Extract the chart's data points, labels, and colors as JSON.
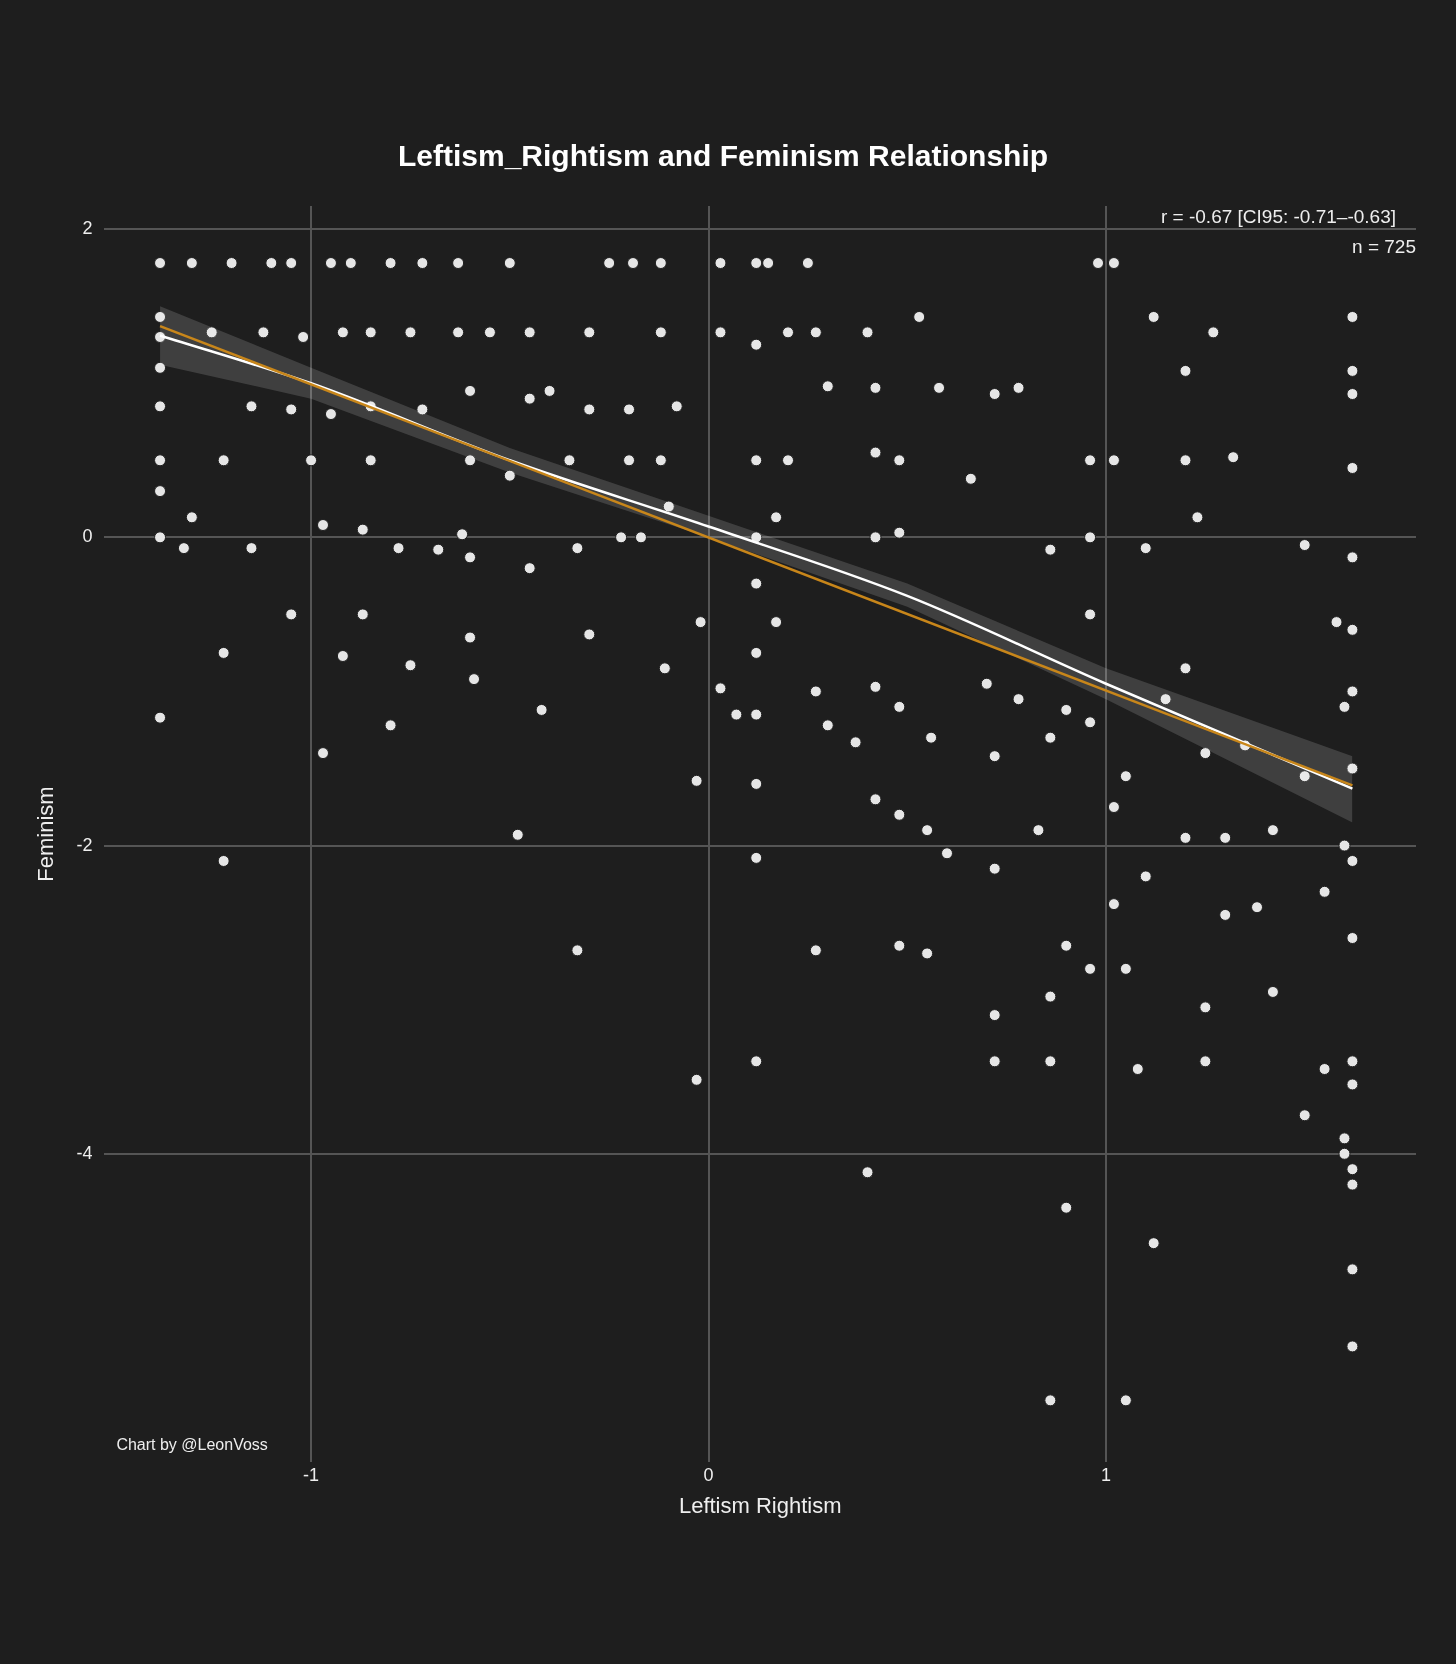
{
  "chart_data": {
    "type": "scatter",
    "title": "Leftism_Rightism and Feminism Relationship",
    "xlabel": "Leftism Rightism",
    "ylabel": "Feminism",
    "annotations": [
      "r = -0.67 [CI95: -0.71–-0.63]",
      "n = 725",
      "Chart by @LeonVoss"
    ],
    "xlim": [
      -1.52,
      1.78
    ],
    "ylim": [
      -6,
      2.15
    ],
    "xticks": [
      -1,
      0,
      1
    ],
    "yticks": [
      2,
      0,
      -2,
      -4
    ],
    "grid": true,
    "series": [
      {
        "marker": "circle",
        "color": "#e6e6e6",
        "x": [
          -1.38,
          -1.38,
          -1.38,
          -1.38,
          -1.38,
          -1.38,
          -1.38,
          -1.38,
          -1.38,
          -1.3,
          -1.2,
          -1.1,
          -1.05,
          -0.95,
          -0.9,
          -0.8,
          -0.72,
          -0.63,
          -0.5,
          -0.25,
          -0.19,
          -0.12,
          0.03,
          0.12,
          0.15,
          0.25,
          0.98,
          1.02,
          -1.25,
          -1.12,
          -1.02,
          -0.92,
          -0.85,
          -0.75,
          -0.63,
          -0.55,
          -0.45,
          -0.3,
          -0.12,
          0.03,
          0.12,
          0.2,
          0.27,
          0.4,
          1.12,
          1.27,
          1.62,
          0.53,
          -1.15,
          -1.05,
          -0.95,
          -0.85,
          -0.72,
          -0.6,
          -0.45,
          -0.4,
          -0.3,
          -0.2,
          -0.08,
          0.3,
          0.42,
          0.58,
          0.72,
          0.78,
          1.2,
          1.62,
          1.62,
          -1.22,
          -1.0,
          -0.85,
          -0.6,
          -0.5,
          -0.35,
          -0.2,
          -0.12,
          0.12,
          0.2,
          0.42,
          0.48,
          0.66,
          0.96,
          1.02,
          1.2,
          1.32,
          1.62,
          -1.3,
          -1.32,
          -1.15,
          -0.97,
          -0.87,
          -0.78,
          -0.68,
          -0.62,
          -0.6,
          -0.33,
          -0.22,
          -0.17,
          -0.1,
          0.12,
          0.12,
          0.17,
          0.42,
          0.48,
          0.86,
          0.96,
          1.1,
          1.23,
          1.5,
          1.62,
          -1.22,
          -1.05,
          -0.92,
          -0.87,
          -0.75,
          -0.6,
          -0.59,
          -0.45,
          -0.42,
          -0.3,
          -0.11,
          -0.02,
          0.03,
          0.07,
          0.12,
          0.12,
          0.12,
          0.12,
          0.17,
          0.27,
          0.3,
          0.37,
          0.42,
          0.42,
          0.48,
          0.48,
          0.55,
          0.6,
          0.56,
          0.7,
          0.72,
          0.72,
          0.78,
          0.83,
          0.86,
          0.9,
          0.96,
          0.96,
          1.02,
          1.05,
          1.1,
          1.15,
          1.2,
          1.2,
          1.25,
          1.3,
          1.35,
          1.42,
          1.5,
          1.55,
          1.58,
          1.6,
          1.6,
          1.62,
          1.62,
          1.62,
          1.62,
          1.62,
          -1.22,
          -0.97,
          -0.8,
          -0.48,
          -0.33,
          -0.03,
          -0.03,
          0.12,
          0.27,
          0.48,
          0.55,
          0.72,
          0.72,
          0.86,
          0.86,
          0.9,
          0.96,
          1.02,
          1.05,
          1.08,
          1.25,
          1.25,
          1.3,
          1.38,
          1.42,
          1.5,
          1.55,
          1.6,
          1.6,
          1.62,
          1.62,
          1.62,
          1.62,
          1.62,
          1.62,
          0.4,
          0.9,
          1.12,
          0.86,
          1.05
        ],
        "values": [
          1.78,
          1.43,
          1.3,
          1.1,
          0.85,
          0.5,
          0.3,
          0,
          -1.17,
          1.78,
          1.78,
          1.78,
          1.78,
          1.78,
          1.78,
          1.78,
          1.78,
          1.78,
          1.78,
          1.78,
          1.78,
          1.78,
          1.78,
          1.78,
          1.78,
          1.78,
          1.78,
          1.78,
          1.33,
          1.33,
          1.3,
          1.33,
          1.33,
          1.33,
          1.33,
          1.33,
          1.33,
          1.33,
          1.33,
          1.33,
          1.25,
          1.33,
          1.33,
          1.33,
          1.43,
          1.33,
          1.43,
          1.43,
          0.85,
          0.83,
          0.8,
          0.85,
          0.83,
          0.95,
          0.9,
          0.95,
          0.83,
          0.83,
          0.85,
          0.98,
          0.97,
          0.97,
          0.93,
          0.97,
          1.08,
          1.08,
          0.93,
          0.5,
          0.5,
          0.5,
          0.5,
          0.4,
          0.5,
          0.5,
          0.5,
          0.5,
          0.5,
          0.55,
          0.5,
          0.38,
          0.5,
          0.5,
          0.5,
          0.52,
          0.45,
          0.13,
          -0.07,
          -0.07,
          0.08,
          0.05,
          -0.07,
          -0.08,
          0.02,
          -0.13,
          -0.07,
          0,
          0,
          0.2,
          0,
          -0.3,
          0.13,
          0,
          0.03,
          -0.08,
          0,
          -0.07,
          0.13,
          -0.05,
          -0.13,
          -0.75,
          -0.5,
          -0.77,
          -0.5,
          -0.83,
          -0.65,
          -0.92,
          -0.2,
          -1.12,
          -0.63,
          -0.85,
          -0.55,
          -0.98,
          -1.15,
          -0.75,
          -1.15,
          -1.6,
          -2.08,
          -0.55,
          -1.0,
          -1.22,
          -1.33,
          -0.97,
          -1.7,
          -1.1,
          -1.8,
          -1.9,
          -2.05,
          -1.3,
          -0.95,
          -1.42,
          -2.15,
          -1.05,
          -1.9,
          -1.3,
          -1.12,
          -0.5,
          -1.2,
          -1.75,
          -1.55,
          -2.2,
          -1.05,
          -0.85,
          -1.95,
          -1.4,
          -1.95,
          -1.35,
          -1.9,
          -1.55,
          -2.3,
          -0.55,
          -1.1,
          -2.0,
          -0.6,
          -1.0,
          -1.5,
          -2.1,
          -2.6,
          -2.1,
          -1.4,
          -1.22,
          -1.93,
          -2.68,
          -1.58,
          -3.52,
          -3.4,
          -2.68,
          -2.65,
          -2.7,
          -3.1,
          -3.4,
          -2.98,
          -3.4,
          -2.65,
          -2.8,
          -2.38,
          -2.8,
          -3.45,
          -3.05,
          -3.4,
          -2.45,
          -2.4,
          -2.95,
          -3.75,
          -3.45,
          -3.9,
          -4.0,
          -3.4,
          -3.55,
          -4.1,
          -4.2,
          -4.75,
          -5.25,
          -4.12,
          -4.35,
          -4.58,
          -5.6,
          -5.6
        ]
      },
      {
        "type": "line",
        "marker": "none",
        "color": "#c8861a",
        "x": [
          -1.38,
          1.62
        ],
        "values": [
          1.37,
          -1.61
        ]
      },
      {
        "type": "line",
        "marker": "none",
        "color": "#ffffff",
        "x": [
          -1.38,
          -1,
          -0.5,
          0,
          0.5,
          1,
          1.62
        ],
        "values": [
          1.31,
          1.0,
          0.5,
          0.07,
          -0.38,
          -0.95,
          -1.63
        ],
        "lower": [
          1.12,
          0.9,
          0.42,
          0.0,
          -0.45,
          -1.05,
          -1.85
        ],
        "upper": [
          1.5,
          1.1,
          0.58,
          0.14,
          -0.3,
          -0.85,
          -1.42
        ]
      }
    ]
  }
}
